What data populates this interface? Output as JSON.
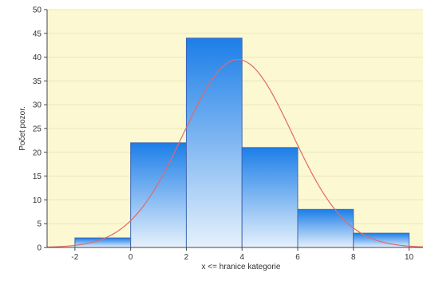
{
  "chart_data": {
    "type": "bar",
    "subtype": "histogram",
    "xlabel": "x <= hranice kategorie",
    "ylabel": "Počet pozor.",
    "xlim": [
      -3,
      10.5
    ],
    "ylim": [
      0,
      50
    ],
    "x_ticks": [
      -2,
      0,
      2,
      4,
      6,
      8,
      10
    ],
    "y_ticks": [
      0,
      5,
      10,
      15,
      20,
      25,
      30,
      35,
      40,
      45,
      50
    ],
    "bins": [
      {
        "from": -2,
        "to": 0,
        "value": 2
      },
      {
        "from": 0,
        "to": 2,
        "value": 22
      },
      {
        "from": 2,
        "to": 4,
        "value": 44
      },
      {
        "from": 4,
        "to": 6,
        "value": 21
      },
      {
        "from": 6,
        "to": 8,
        "value": 8
      },
      {
        "from": 8,
        "to": 10,
        "value": 3
      }
    ],
    "fitted_curve": {
      "type": "normal",
      "mean": 3.85,
      "sd": 1.95,
      "peak": 39.5
    },
    "grid": true,
    "colors": {
      "plot_background": "#fbf8d2",
      "grid": "#ece7b9",
      "bar_top": "#1c7ee8",
      "bar_bottom": "#e6f1fc",
      "bar_border": "#3f67b4",
      "curve": "#e06a6a",
      "axis": "#444444"
    }
  }
}
